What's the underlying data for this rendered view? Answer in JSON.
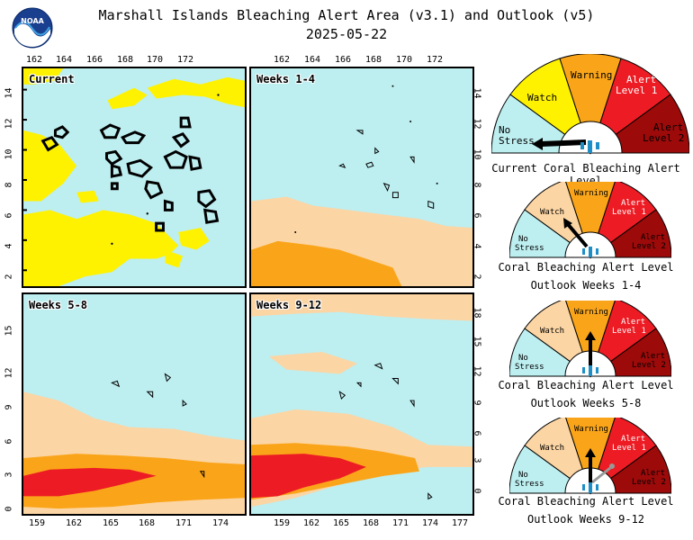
{
  "header": {
    "title": "Marshall Islands Bleaching Alert Area (v3.1) and Outlook (v5)",
    "date": "2025-05-22",
    "logo_text": "NOAA"
  },
  "panels": {
    "current": "Current",
    "weeks_1_4": "Weeks 1-4",
    "weeks_5_8": "Weeks 5-8",
    "weeks_9_12": "Weeks 9-12"
  },
  "axes": {
    "top_lon_ticks": [
      "162",
      "164",
      "166",
      "168",
      "170",
      "172"
    ],
    "bottom_lon_ticks": [
      "159",
      "162",
      "165",
      "168",
      "171",
      "174"
    ],
    "bottom_lon_ticks_right": [
      "159",
      "162",
      "165",
      "168",
      "171",
      "174",
      "177"
    ],
    "lat_ticks_top": [
      "2",
      "4",
      "6",
      "8",
      "10",
      "12",
      "14"
    ],
    "lat_ticks_bottom": [
      "0",
      "3",
      "6",
      "9",
      "12",
      "15"
    ],
    "lat_ticks_bottom_right": [
      "0",
      "3",
      "6",
      "9",
      "12",
      "15",
      "18"
    ]
  },
  "legend": {
    "levels": [
      "No Stress",
      "Watch",
      "Warning",
      "Alert Level 1",
      "Alert Level 2"
    ],
    "colors": {
      "no_stress": "#bdeef0",
      "watch_current": "#fff200",
      "watch_outlook": "#fcd5a4",
      "warning": "#faa519",
      "alert1": "#ed1c24",
      "alert2": "#9c0a0a"
    }
  },
  "gauges": [
    {
      "caption": "Current Coral Bleaching Alert Level",
      "caption2": "",
      "pointer_level": "No Stress"
    },
    {
      "caption": "Coral Bleaching Alert Level",
      "caption2": "Outlook Weeks 1-4",
      "pointer_level": "Watch"
    },
    {
      "caption": "Coral Bleaching Alert Level",
      "caption2": "Outlook Weeks 5-8",
      "pointer_level": "Warning"
    },
    {
      "caption": "Coral Bleaching Alert Level",
      "caption2": "Outlook Weeks 9-12",
      "pointer_level": "Warning"
    }
  ]
}
